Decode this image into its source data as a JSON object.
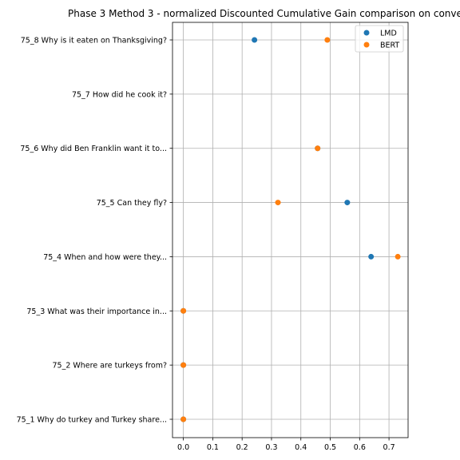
{
  "chart_data": {
    "type": "scatter",
    "title": "Phase 3 Method 3 - normalized Discounted Cumulative Gain comparison on conve",
    "xlabel": "",
    "ylabel": "",
    "xlim": [
      -0.037,
      0.765
    ],
    "x_ticks": [
      0.0,
      0.1,
      0.2,
      0.3,
      0.4,
      0.5,
      0.6,
      0.7
    ],
    "x_tick_labels": [
      "0.0",
      "0.1",
      "0.2",
      "0.3",
      "0.4",
      "0.5",
      "0.6",
      "0.7"
    ],
    "categories": [
      "75_1 Why do turkey and Turkey share...",
      "75_2 Where are turkeys from?",
      "75_3 What was their importance in...",
      "75_4 When and how were they...",
      "75_5 Can they fly?",
      "75_6 Why did Ben Franklin want it to...",
      "75_7 How did he cook it?",
      "75_8 Why is it eaten on Thanksgiving?"
    ],
    "grid": true,
    "legend_position": "top-right",
    "series": [
      {
        "name": "LMD",
        "color": "#1f77b4",
        "values": [
          0.0,
          0.0,
          0.0,
          0.639,
          0.558,
          0.457,
          null,
          0.242
        ]
      },
      {
        "name": "BERT",
        "color": "#ff7f0e",
        "values": [
          0.0,
          0.0,
          0.0,
          0.73,
          0.322,
          0.457,
          null,
          0.49
        ]
      }
    ]
  }
}
